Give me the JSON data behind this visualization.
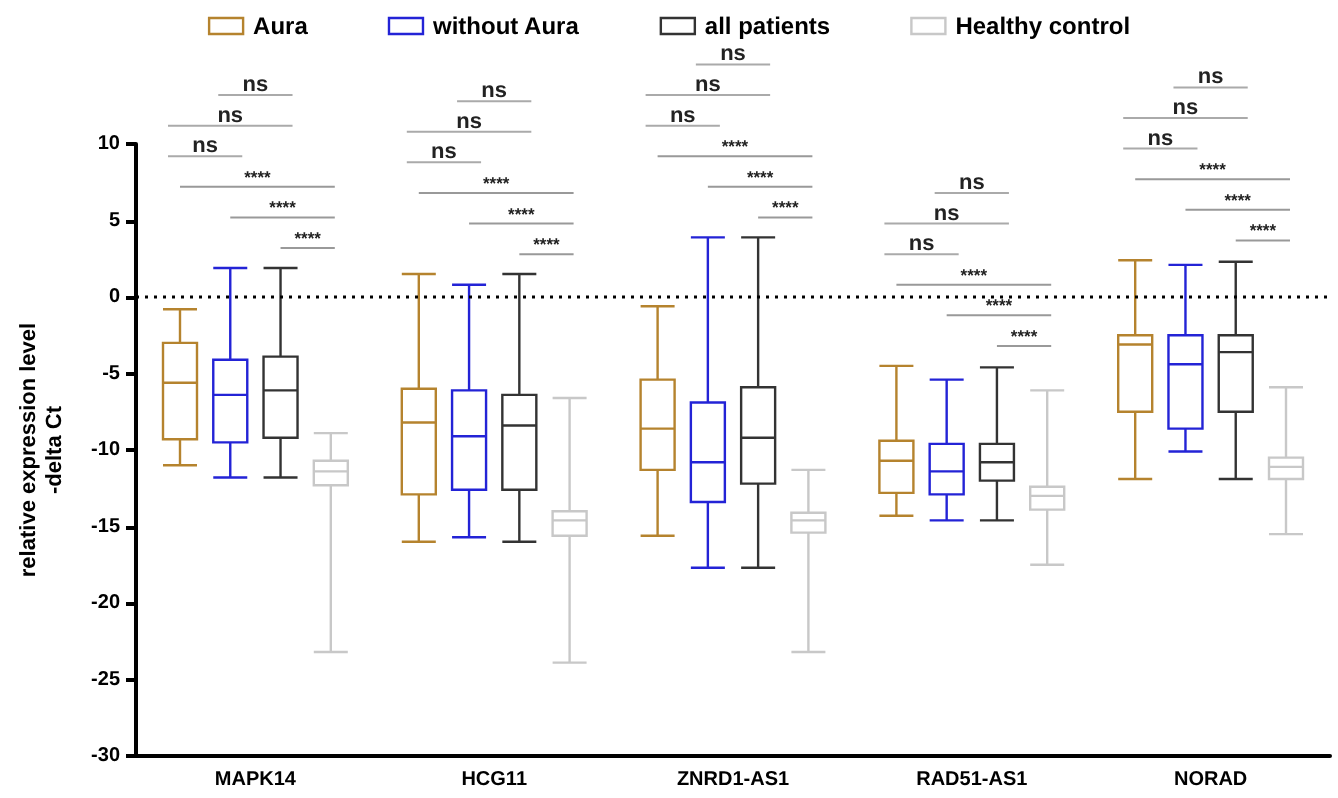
{
  "chart_data": {
    "type": "box",
    "ylabel": "relative expression level\n-delta Ct",
    "categories": [
      "MAPK14",
      "HCG11",
      "ZNRD1-AS1",
      "RAD51-AS1",
      "NORAD"
    ],
    "ylim": [
      -30,
      10
    ],
    "yticks": [
      -30,
      -25,
      -20,
      -15,
      -10,
      -5,
      0,
      5,
      10
    ],
    "grid": false,
    "legend": "top",
    "series": [
      {
        "name": "Aura",
        "color": "#b5832e",
        "boxes": [
          {
            "low": -11.0,
            "q1": -9.3,
            "median": -5.6,
            "q3": -3.0,
            "high": -0.8
          },
          {
            "low": -16.0,
            "q1": -12.9,
            "median": -8.2,
            "q3": -6.0,
            "high": 1.5
          },
          {
            "low": -15.6,
            "q1": -11.3,
            "median": -8.6,
            "q3": -5.4,
            "high": -0.6
          },
          {
            "low": -14.3,
            "q1": -12.8,
            "median": -10.7,
            "q3": -9.4,
            "high": -4.5
          },
          {
            "low": -11.9,
            "q1": -7.5,
            "median": -3.1,
            "q3": -2.5,
            "high": 2.4
          }
        ]
      },
      {
        "name": "without Aura",
        "color": "#2323d6",
        "boxes": [
          {
            "low": -11.8,
            "q1": -9.5,
            "median": -6.4,
            "q3": -4.1,
            "high": 1.9
          },
          {
            "low": -15.7,
            "q1": -12.6,
            "median": -9.1,
            "q3": -6.1,
            "high": 0.8
          },
          {
            "low": -17.7,
            "q1": -13.4,
            "median": -10.8,
            "q3": -6.9,
            "high": 3.9
          },
          {
            "low": -14.6,
            "q1": -12.9,
            "median": -11.4,
            "q3": -9.6,
            "high": -5.4
          },
          {
            "low": -10.1,
            "q1": -8.6,
            "median": -4.4,
            "q3": -2.5,
            "high": 2.1
          }
        ]
      },
      {
        "name": "all patients",
        "color": "#333333",
        "boxes": [
          {
            "low": -11.8,
            "q1": -9.2,
            "median": -6.1,
            "q3": -3.9,
            "high": 1.9
          },
          {
            "low": -16.0,
            "q1": -12.6,
            "median": -8.4,
            "q3": -6.4,
            "high": 1.5
          },
          {
            "low": -17.7,
            "q1": -12.2,
            "median": -9.2,
            "q3": -5.9,
            "high": 3.9
          },
          {
            "low": -14.6,
            "q1": -12.0,
            "median": -10.8,
            "q3": -9.6,
            "high": -4.6
          },
          {
            "low": -11.9,
            "q1": -7.5,
            "median": -3.6,
            "q3": -2.5,
            "high": 2.3
          }
        ]
      },
      {
        "name": "Healthy control",
        "color": "#c8c8c8",
        "boxes": [
          {
            "low": -23.2,
            "q1": -12.3,
            "median": -11.4,
            "q3": -10.7,
            "high": -8.9
          },
          {
            "low": -23.9,
            "q1": -15.6,
            "median": -14.6,
            "q3": -14.0,
            "high": -6.6
          },
          {
            "low": -23.2,
            "q1": -15.4,
            "median": -14.6,
            "q3": -14.1,
            "high": -11.3
          },
          {
            "low": -17.5,
            "q1": -13.9,
            "median": -13.0,
            "q3": -12.4,
            "high": -6.1
          },
          {
            "low": -15.5,
            "q1": -11.9,
            "median": -11.1,
            "q3": -10.5,
            "high": -5.9
          }
        ]
      }
    ],
    "ref_lines": [
      {
        "axis": "y",
        "value": 0,
        "color": "#000000",
        "line_style": "dotted"
      }
    ],
    "annotations": [
      "ns",
      "ns",
      "ns",
      "****",
      "****",
      "****",
      "ns",
      "ns",
      "ns",
      "****",
      "****",
      "****",
      "ns",
      "ns",
      "ns",
      "****",
      "****",
      "****",
      "ns",
      "ns",
      "ns",
      "****",
      "****",
      "****",
      "ns",
      "ns",
      "ns",
      "****",
      "****",
      "****"
    ]
  }
}
